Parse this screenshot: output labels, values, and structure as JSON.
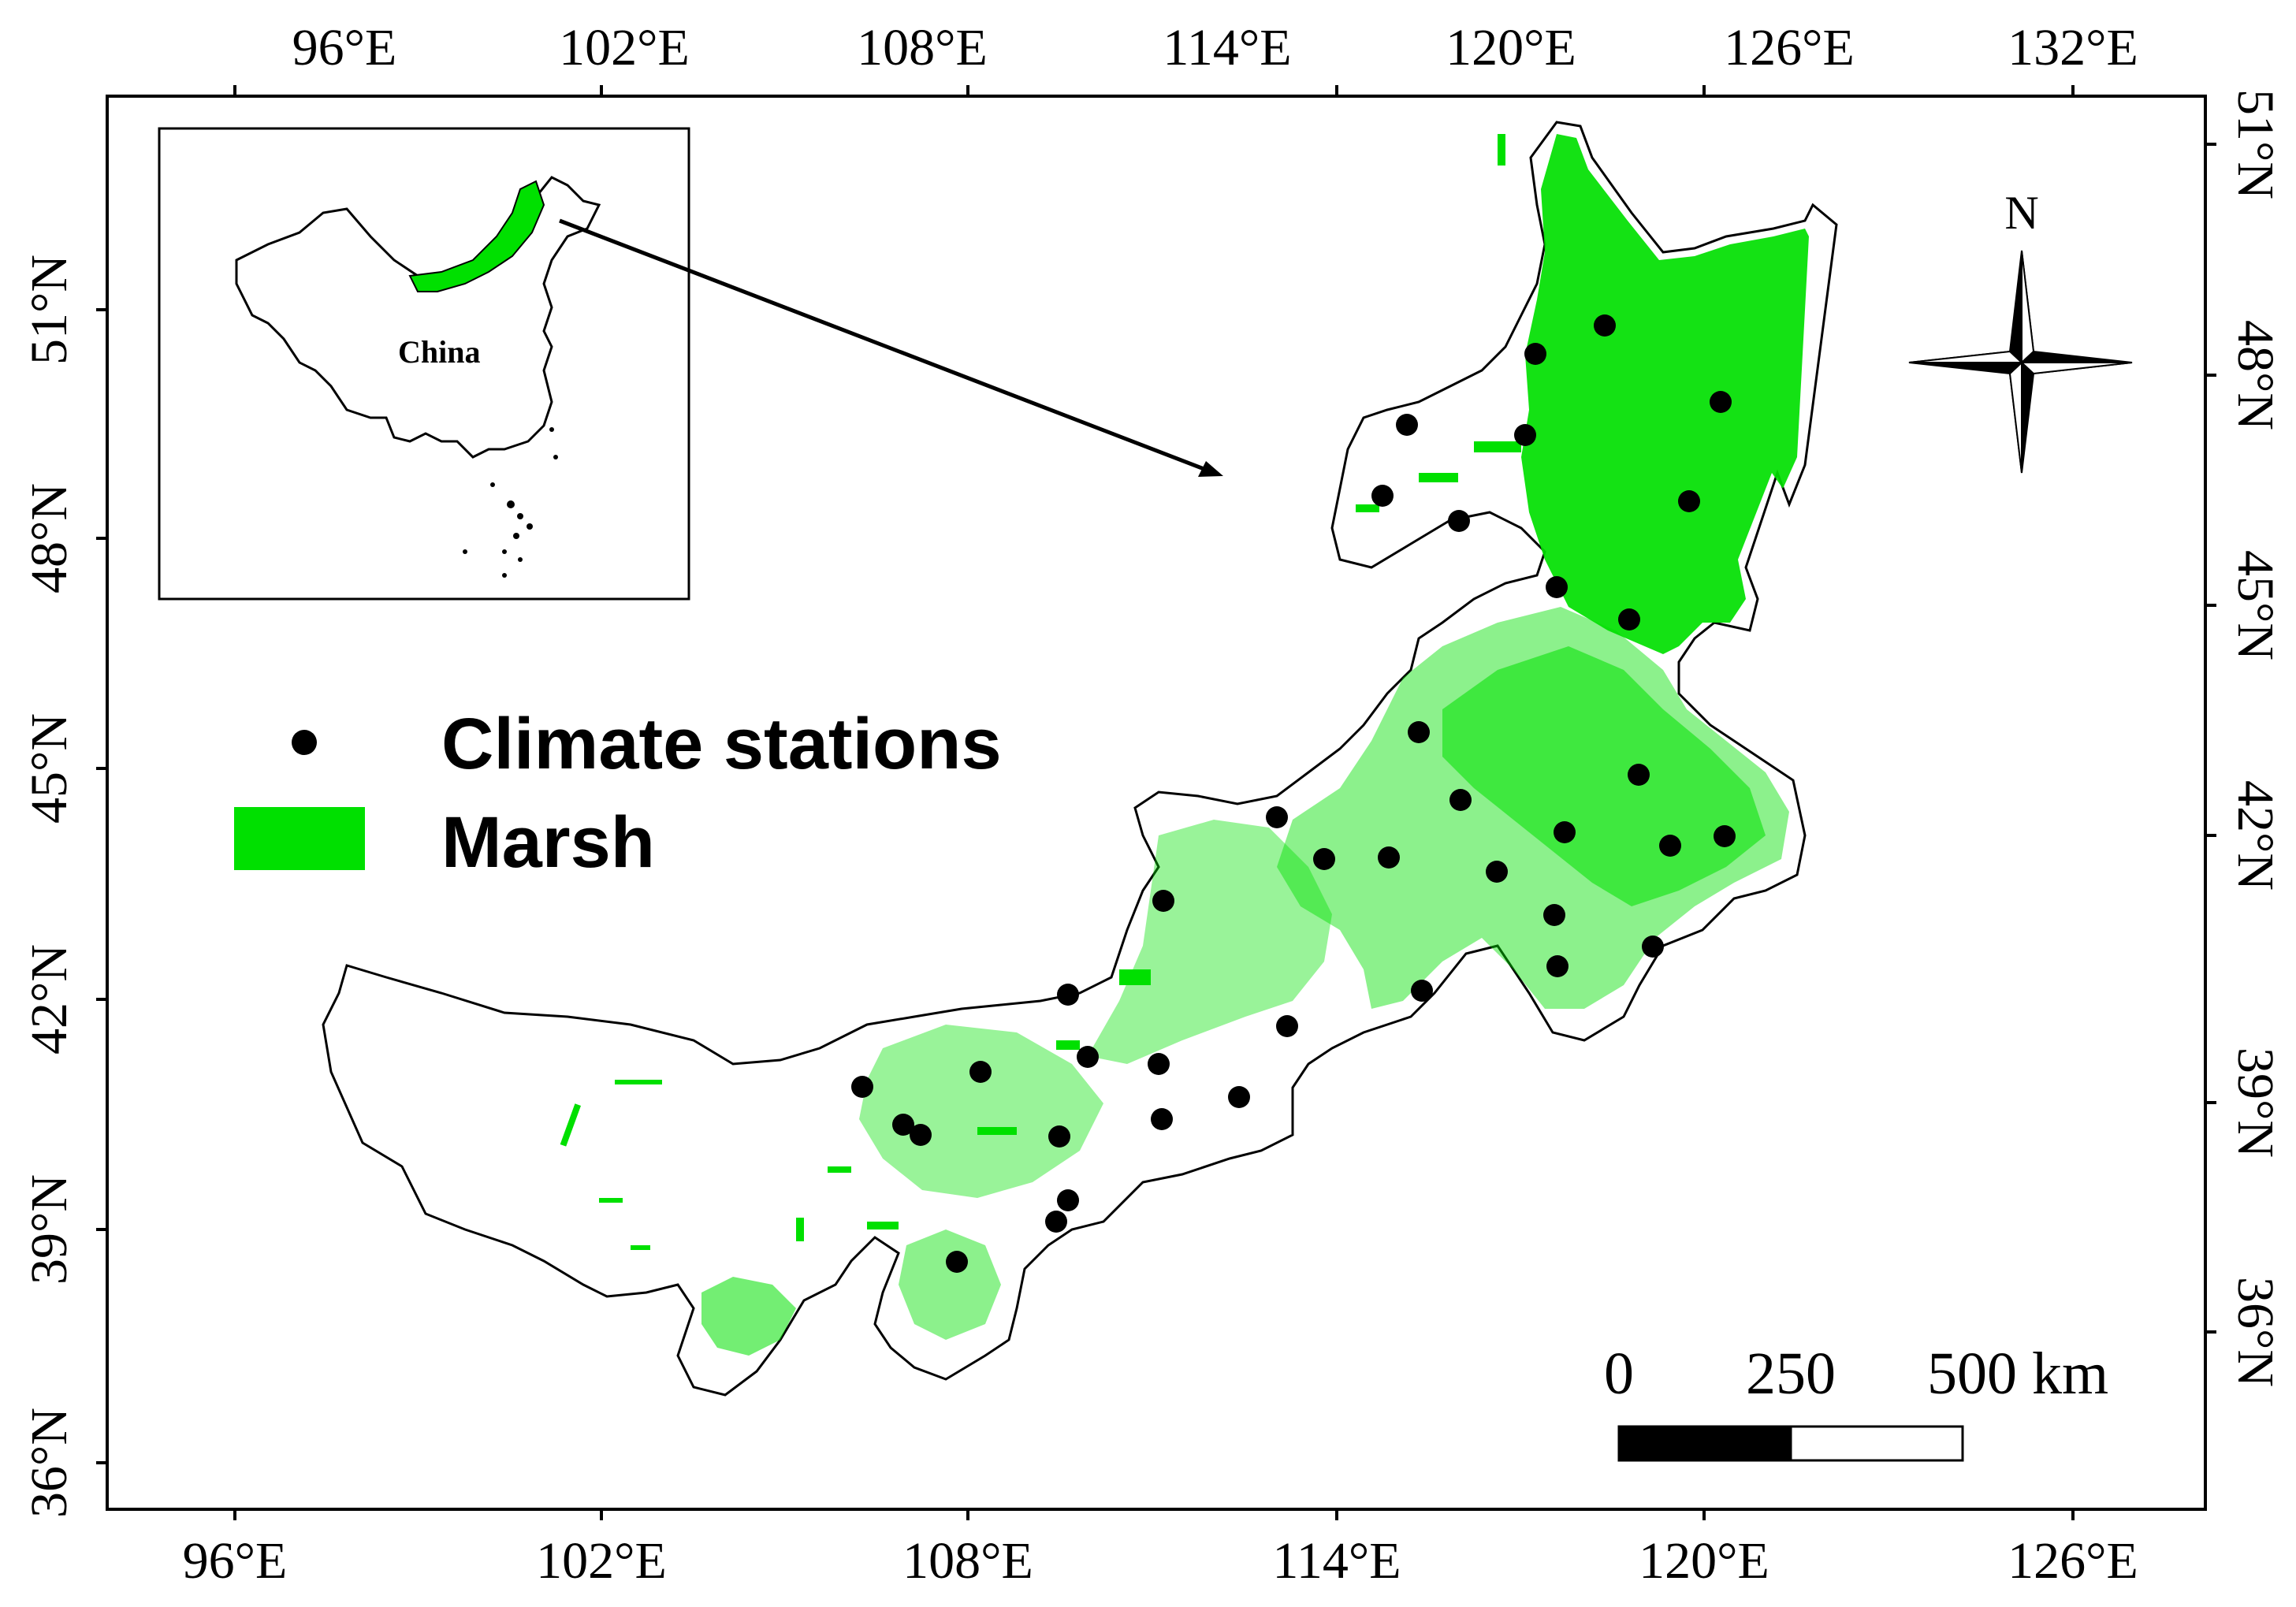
{
  "axes": {
    "top_ticks": [
      "96°E",
      "102°E",
      "108°E",
      "114°E",
      "120°E",
      "126°E",
      "132°E"
    ],
    "bottom_ticks": [
      "96°E",
      "102°E",
      "108°E",
      "114°E",
      "120°E",
      "126°E"
    ],
    "left_ticks": [
      "51°N",
      "48°N",
      "45°N",
      "42°N",
      "39°N",
      "36°N"
    ],
    "right_ticks": [
      "51°N",
      "48°N",
      "45°N",
      "42°N",
      "39°N",
      "36°N"
    ]
  },
  "legend": {
    "stations_label": "Climate stations",
    "marsh_label": "Marsh"
  },
  "inset": {
    "country_label": "China"
  },
  "north_arrow": {
    "label": "N"
  },
  "scale_bar": {
    "labels": [
      "0",
      "250",
      "500 km"
    ]
  },
  "colors": {
    "marsh": "#00e000",
    "station": "#000000",
    "outline": "#000000"
  }
}
